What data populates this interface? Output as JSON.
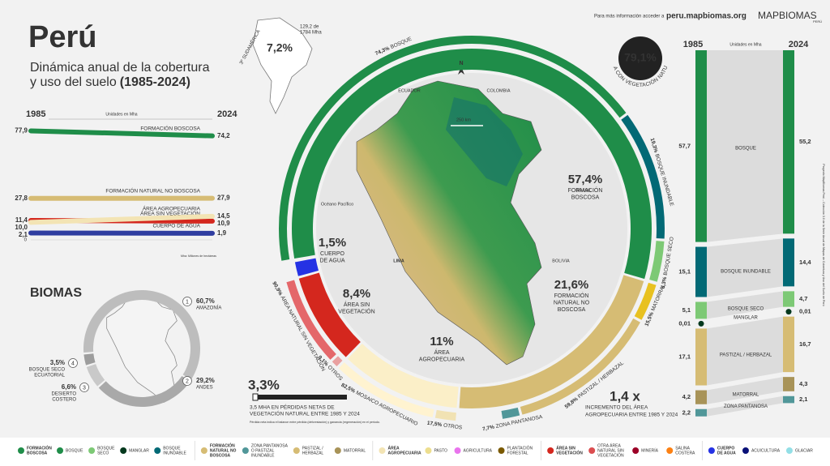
{
  "header": {
    "title": "Perú",
    "subtitle_lines": [
      "Dinámica anual de la cobertura",
      "y uso del suelo"
    ],
    "period": "(1985-2024)",
    "info": "Para más información acceder a",
    "url": "peru.mapbiomas.org",
    "logo": "MAPBIOMAS",
    "logo_sub": "PERÚ"
  },
  "south_america": {
    "percent": "7,2%",
    "area_lines": [
      "129,2 de",
      "1784 Mha"
    ],
    "rank": "3º",
    "region": "SUDAMÉRICA"
  },
  "trend": {
    "start_year": "1985",
    "end_year": "2024",
    "unit": "Unidades en Mha",
    "ylim": [
      0,
      80
    ],
    "zero": "0",
    "note": "Mha: Millones de hectáreas",
    "series": [
      {
        "name": "FORMACIÓN BOSCOSA",
        "color": "#1f8d49",
        "start": {
          "value": 77.9,
          "label": "77,9"
        },
        "end": {
          "value": 74.2,
          "label": "74,2"
        }
      },
      {
        "name": "FORMACIÓN NATURAL NO BOSCOSA",
        "color": "#d6bc74",
        "start": {
          "value": 27.8,
          "label": "27,8"
        },
        "end": {
          "value": 27.9,
          "label": "27,9"
        }
      },
      {
        "name": "ÁREA SIN VEGETACIÓN",
        "color": "#d4271e",
        "start": {
          "value": 11.4,
          "label": "11,4"
        },
        "end": {
          "value": 10.9,
          "label": "10,9"
        }
      },
      {
        "name": "ÁREA AGROPECUARIA",
        "color": "#f3e4b4",
        "start": {
          "value": 10.0,
          "label": "10,0"
        },
        "end": {
          "value": 14.5,
          "label": "14,5"
        }
      },
      {
        "name": "CUERPO DE AGUA",
        "color": "#2f3da0",
        "start": {
          "value": 2.1,
          "label": "2,1"
        },
        "end": {
          "value": 1.9,
          "label": "1,9"
        }
      }
    ]
  },
  "donut": {
    "center_value": "79,1%",
    "center_label": "ÁREA CON VEGETACIÓN NATURAL",
    "classes": [
      {
        "name_lines": [
          "FORMACIÓN",
          "BOSCOSA"
        ],
        "value": 57.4,
        "label": "57,4%",
        "color": "#1f8d49",
        "subclasses": [
          {
            "name": "BOSQUE",
            "value": 74.3,
            "label": "74,3%",
            "color": "#1f8d49"
          },
          {
            "name": "BOSQUE INUNDABLE",
            "value": 19.3,
            "label": "19,3%",
            "color": "#026975"
          },
          {
            "name": "BOSQUE SECO",
            "value": 6.3,
            "label": "6,3%",
            "color": "#7dc975"
          }
        ]
      },
      {
        "name_lines": [
          "FORMACIÓN",
          "NATURAL NO",
          "BOSCOSA"
        ],
        "value": 21.6,
        "label": "21,6%",
        "color": "#d6bc74",
        "subclasses": [
          {
            "name": "MATORRAL",
            "value": 15.5,
            "label": "15,5%",
            "color": "#e8c120"
          },
          {
            "name": "PASTIZAL / HERBAZAL",
            "value": 59.8,
            "label": "59,8%",
            "color": "#d6bc74"
          },
          {
            "name": "ZONA PANTANOSA",
            "value": 7.7,
            "label": "7,7%",
            "color": "#519799"
          }
        ]
      },
      {
        "name_lines": [
          "ÁREA",
          "AGROPECUARIA"
        ],
        "value": 11,
        "label": "11%",
        "color": "#fbefc8",
        "subclasses": [
          {
            "name": "OTROS",
            "value": 17.5,
            "label": "17,5%",
            "color": "#f1e2b3"
          },
          {
            "name": "MOSAICO AGROPECUARIO",
            "value": 82.5,
            "label": "82,5%",
            "color": "#fff3d0"
          }
        ]
      },
      {
        "name_lines": [
          "ÁREA SIN",
          "VEGETACIÓN"
        ],
        "value": 8.4,
        "label": "8,4%",
        "color": "#d4271e",
        "subclasses": [
          {
            "name": "OTROS",
            "value": 9.1,
            "label": "9,1%",
            "color": "#e9a0a0"
          },
          {
            "name": "ÁREA NATURAL SIN VEGETACIÓN",
            "value": 90.9,
            "label": "90,9%",
            "color": "#e4676a"
          }
        ]
      },
      {
        "name_lines": [
          "CUERPO",
          "DE AGUA"
        ],
        "value": 1.5,
        "label": "1,5%",
        "color": "#2532e4",
        "subclasses": []
      }
    ]
  },
  "map": {
    "north": "N",
    "scale": "250 km",
    "ecuador": "ECUADOR",
    "colombia": "COLOMBIA",
    "brasil": "BRASIL",
    "bolivia": "BOLIVIA",
    "lima": "LIMA",
    "ocean": "Océano Pacífico"
  },
  "stats": {
    "agro_factor": "1,4 x",
    "agro_lines": [
      "INCREMENTO DEL ÁREA",
      "AGROPECUARIA ENTRE 1985 Y 2024"
    ],
    "loss_percent": "3,3%",
    "loss_lines": [
      "3,5 MHA EN PÉRDIDAS NETAS DE",
      "VEGETACIÓN NATURAL ENTRE 1985 Y 2024"
    ],
    "loss_note": "Pérdida neta indica el balance entre pérdida (deforestación) y ganancia (regeneración) en el periodo."
  },
  "transitions": {
    "start_year": "1985",
    "end_year": "2024",
    "unit": "Unidades en Mha",
    "rows": [
      {
        "name": "BOSQUE",
        "color": "#1f8d49",
        "start": {
          "value": 57.7,
          "label": "57,7"
        },
        "end": {
          "value": 55.2,
          "label": "55,2"
        }
      },
      {
        "name": "BOSQUE INUNDABLE",
        "color": "#026975",
        "start": {
          "value": 15.1,
          "label": "15,1"
        },
        "end": {
          "value": 14.4,
          "label": "14,4"
        }
      },
      {
        "name": "BOSQUE SECO",
        "color": "#7dc975",
        "start": {
          "value": 5.1,
          "label": "5,1"
        },
        "end": {
          "value": 4.7,
          "label": "4,7"
        }
      },
      {
        "name": "MANGLAR",
        "color": "#04381d",
        "start": {
          "value": 0.01,
          "label": "0,01"
        },
        "end": {
          "value": 0.01,
          "label": "0,01"
        }
      },
      {
        "name": "PASTIZAL / HERBAZAL",
        "color": "#d6bc74",
        "start": {
          "value": 17.1,
          "label": "17,1"
        },
        "end": {
          "value": 16.7,
          "label": "16,7"
        }
      },
      {
        "name": "MATORRAL",
        "color": "#a89358",
        "start": {
          "value": 4.2,
          "label": "4,2"
        },
        "end": {
          "value": 4.3,
          "label": "4,3"
        }
      },
      {
        "name": "ZONA PANTANOSA",
        "color": "#519799",
        "start": {
          "value": 2.2,
          "label": "2,2"
        },
        "end": {
          "value": 2.1,
          "label": "2,1"
        }
      }
    ]
  },
  "biomes": {
    "title": "BIOMAS",
    "items": [
      {
        "number": "1",
        "name_lines": [
          "AMAZONÍA"
        ],
        "value": 60.7,
        "label": "60,7%"
      },
      {
        "number": "2",
        "name_lines": [
          "ANDES"
        ],
        "value": 29.2,
        "label": "29,2%"
      },
      {
        "number": "3",
        "name_lines": [
          "DESIERTO",
          "COSTERO"
        ],
        "value": 6.6,
        "label": "6,6%"
      },
      {
        "number": "4",
        "name_lines": [
          "BOSQUE SECO",
          "ECUATORIAL"
        ],
        "value": 3.5,
        "label": "3,5%"
      }
    ]
  },
  "legend": [
    {
      "lines": [
        "FORMACIÓN",
        "BOSCOSA"
      ],
      "color": "#1f8d49",
      "items": [
        {
          "lines": [
            "BOSQUE"
          ],
          "color": "#1f8d49"
        },
        {
          "lines": [
            "BOSQUE",
            "SECO"
          ],
          "color": "#7dc975"
        },
        {
          "lines": [
            "MANGLAR"
          ],
          "color": "#04381d"
        },
        {
          "lines": [
            "BOSQUE",
            "INUNDABLE"
          ],
          "color": "#026975"
        }
      ]
    },
    {
      "lines": [
        "FORMACIÓN",
        "NATURAL NO",
        "BOSCOSA"
      ],
      "color": "#d6bc74",
      "items": [
        {
          "lines": [
            "ZONA PANTANOSA",
            "O PASTIZAL",
            "INUNDABLE"
          ],
          "color": "#519799"
        },
        {
          "lines": [
            "PASTIZAL /",
            "HERBAZAL"
          ],
          "color": "#d6bc74"
        },
        {
          "lines": [
            "MATORRAL"
          ],
          "color": "#a89358"
        }
      ]
    },
    {
      "lines": [
        "ÁREA",
        "AGROPECUARIA"
      ],
      "color": "#f3e4b4",
      "items": [
        {
          "lines": [
            "PASTO"
          ],
          "color": "#edde8e"
        },
        {
          "lines": [
            "AGRICULTURA"
          ],
          "color": "#e974ed"
        },
        {
          "lines": [
            "PLANTACIÓN",
            "FORESTAL"
          ],
          "color": "#7a5900"
        }
      ]
    },
    {
      "lines": [
        "ÁREA SIN",
        "VEGETACIÓN"
      ],
      "color": "#d4271e",
      "items": [
        {
          "lines": [
            "OTRA ÁREA",
            "NATURAL SIN",
            "VEGETACIÓN"
          ],
          "color": "#db4d4f"
        },
        {
          "lines": [
            "MINERÍA"
          ],
          "color": "#9c0027"
        },
        {
          "lines": [
            "SALINA",
            "COSTERA"
          ],
          "color": "#fc8114"
        }
      ]
    },
    {
      "lines": [
        "CUERPO",
        "DE AGUA"
      ],
      "color": "#2532e4",
      "items": [
        {
          "lines": [
            "ACUICULTURA"
          ],
          "color": "#091077"
        },
        {
          "lines": [
            "GLACIAR"
          ],
          "color": "#93dfe6"
        }
      ]
    }
  ],
  "credit": "Proyecto MapBiomas Perú – Colección 3.0 de la Serie Anual de Mapas de Cobertura y Uso del Suelo de Perú"
}
